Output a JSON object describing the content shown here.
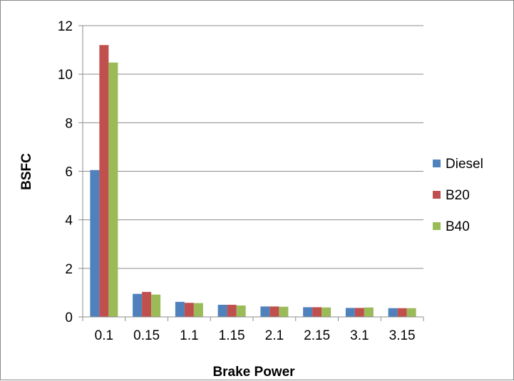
{
  "chart_data": {
    "type": "bar",
    "title": "",
    "xlabel": "Brake Power",
    "ylabel": "BSFC",
    "categories": [
      "0.1",
      "0.15",
      "1.1",
      "1.15",
      "2.1",
      "2.15",
      "3.1",
      "3.15"
    ],
    "series": [
      {
        "name": "Diesel",
        "color": "#4f81bd",
        "values": [
          6.05,
          0.95,
          0.62,
          0.5,
          0.43,
          0.4,
          0.37,
          0.36
        ]
      },
      {
        "name": "B20",
        "color": "#c0504d",
        "values": [
          11.2,
          1.03,
          0.58,
          0.5,
          0.43,
          0.4,
          0.37,
          0.36
        ]
      },
      {
        "name": "B40",
        "color": "#9bbb59",
        "values": [
          10.48,
          0.92,
          0.57,
          0.47,
          0.42,
          0.39,
          0.39,
          0.36
        ]
      }
    ],
    "ylim": [
      0,
      12
    ],
    "yticks": [
      0,
      2,
      4,
      6,
      8,
      10,
      12
    ],
    "grid": "horizontal",
    "legend_position": "right"
  }
}
